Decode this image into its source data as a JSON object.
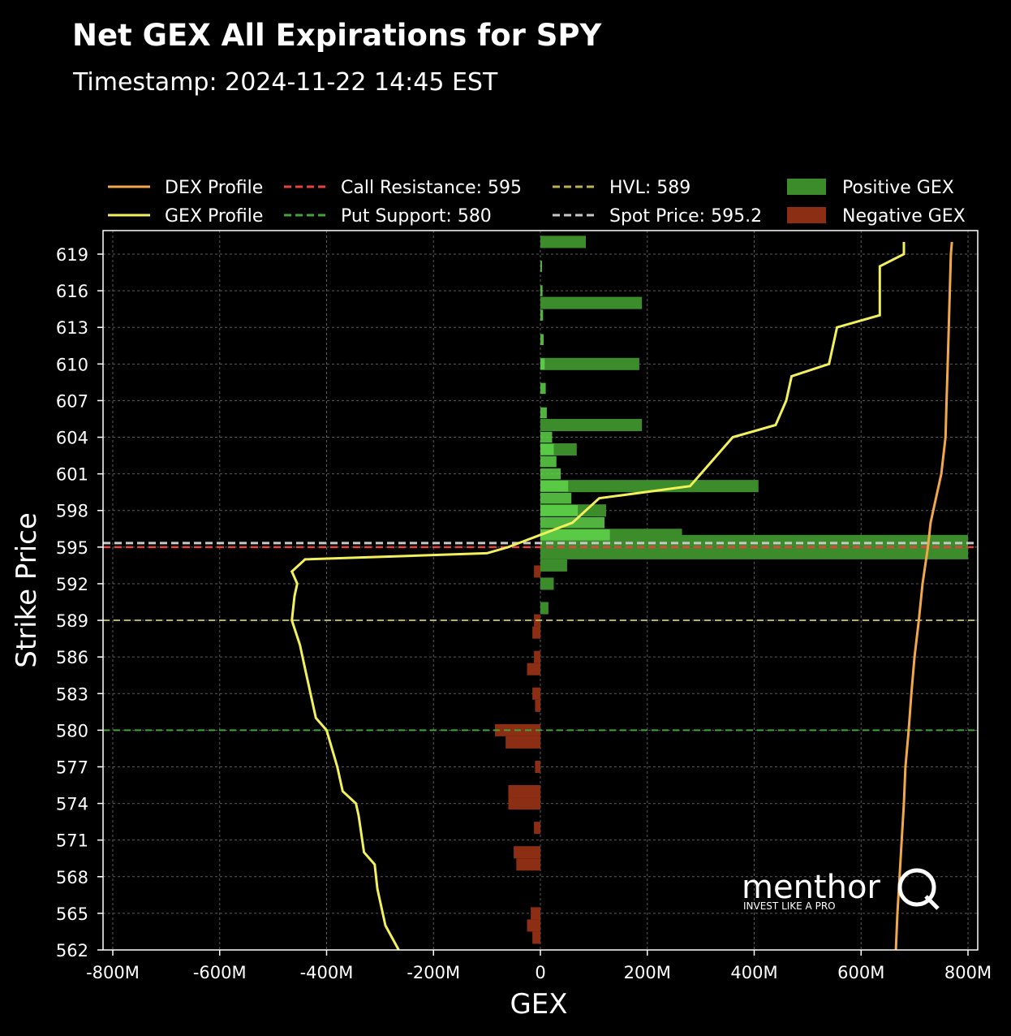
{
  "chart_data": {
    "type": "bar",
    "orientation": "horizontal",
    "title": "Net GEX All Expirations for SPY",
    "subtitle": "Timestamp: 2024-11-22 14:45 EST",
    "xlabel": "GEX",
    "ylabel": "Strike Price",
    "xlim": [
      -800,
      800
    ],
    "x_unit": "M",
    "ylim": [
      562,
      621
    ],
    "x_ticks": [
      -800,
      -600,
      -400,
      -200,
      0,
      200,
      400,
      600,
      800
    ],
    "x_tick_labels": [
      "-800M",
      "-600M",
      "-400M",
      "-200M",
      "0",
      "200M",
      "400M",
      "600M",
      "800M"
    ],
    "y_ticks": [
      562,
      565,
      568,
      571,
      574,
      577,
      580,
      583,
      586,
      589,
      592,
      595,
      598,
      601,
      604,
      607,
      610,
      613,
      616,
      619
    ],
    "grid": true,
    "legend_position": "top",
    "colors": {
      "background": "#000000",
      "positive": "#3d8c2b",
      "positive_light": "#5fd34a",
      "negative": "#8b2e14",
      "gex_profile": "#f3f15b",
      "dex_profile": "#f2a84a",
      "call_resistance": "#e8423f",
      "put_support": "#3fa53a",
      "hvl": "#b9b152",
      "spot": "#c8c8c8",
      "grid": "#5a5a5a"
    },
    "legend": [
      {
        "label": "DEX Profile",
        "kind": "line",
        "color": "#f2a84a"
      },
      {
        "label": "GEX Profile",
        "kind": "line",
        "color": "#f3f15b"
      },
      {
        "label": "Call Resistance: 595",
        "kind": "dash",
        "color": "#e8423f"
      },
      {
        "label": "Put Support: 580",
        "kind": "dash",
        "color": "#3fa53a"
      },
      {
        "label": "HVL: 589",
        "kind": "dash",
        "color": "#b9b152"
      },
      {
        "label": "Spot Price: 595.2",
        "kind": "dash",
        "color": "#c8c8c8"
      },
      {
        "label": "Positive GEX",
        "kind": "patch",
        "color": "#3d8c2b"
      },
      {
        "label": "Negative GEX",
        "kind": "patch",
        "color": "#8b2e14"
      }
    ],
    "levels": {
      "call_resistance": 595,
      "put_support": 580,
      "hvl": 589,
      "spot": 595.2
    },
    "all_expirations_bars": [
      {
        "strike": 620,
        "value": 85
      },
      {
        "strike": 615,
        "value": 190
      },
      {
        "strike": 610,
        "value": 185
      },
      {
        "strike": 605,
        "value": 190
      },
      {
        "strike": 603,
        "value": 68
      },
      {
        "strike": 600,
        "value": 408
      },
      {
        "strike": 598,
        "value": 123
      },
      {
        "strike": 596,
        "value": 265
      },
      {
        "strike": 595.5,
        "value": 800
      },
      {
        "strike": 594.5,
        "value": 800
      },
      {
        "strike": 593.5,
        "value": 50
      },
      {
        "strike": 593,
        "value": -12
      },
      {
        "strike": 592,
        "value": 25
      },
      {
        "strike": 590,
        "value": 15
      },
      {
        "strike": 589,
        "value": -12
      },
      {
        "strike": 588,
        "value": -15
      },
      {
        "strike": 586,
        "value": -12
      },
      {
        "strike": 585,
        "value": -25
      },
      {
        "strike": 583,
        "value": -15
      },
      {
        "strike": 582,
        "value": -10
      },
      {
        "strike": 580,
        "value": -85
      },
      {
        "strike": 579,
        "value": -65
      },
      {
        "strike": 577,
        "value": -10
      },
      {
        "strike": 575,
        "value": -60
      },
      {
        "strike": 574,
        "value": -60
      },
      {
        "strike": 572,
        "value": -12
      },
      {
        "strike": 570,
        "value": -50
      },
      {
        "strike": 569,
        "value": -45
      },
      {
        "strike": 565,
        "value": -18
      },
      {
        "strike": 564,
        "value": -25
      },
      {
        "strike": 563,
        "value": -15
      }
    ],
    "near_term_bars": [
      {
        "strike": 618,
        "value": 3
      },
      {
        "strike": 616,
        "value": 4
      },
      {
        "strike": 614,
        "value": 5
      },
      {
        "strike": 612,
        "value": 6
      },
      {
        "strike": 610,
        "value": 8
      },
      {
        "strike": 608,
        "value": 10
      },
      {
        "strike": 606,
        "value": 12
      },
      {
        "strike": 604,
        "value": 22
      },
      {
        "strike": 603,
        "value": 25
      },
      {
        "strike": 602,
        "value": 30
      },
      {
        "strike": 601,
        "value": 38
      },
      {
        "strike": 600,
        "value": 52
      },
      {
        "strike": 599,
        "value": 58
      },
      {
        "strike": 598,
        "value": 70
      },
      {
        "strike": 597,
        "value": 120
      },
      {
        "strike": 596,
        "value": 130
      }
    ],
    "gex_profile": [
      [
        -265,
        562
      ],
      [
        -290,
        564
      ],
      [
        -305,
        567
      ],
      [
        -310,
        569
      ],
      [
        -330,
        570
      ],
      [
        -340,
        573
      ],
      [
        -345,
        574
      ],
      [
        -370,
        575
      ],
      [
        -380,
        577
      ],
      [
        -400,
        580
      ],
      [
        -420,
        581
      ],
      [
        -430,
        583
      ],
      [
        -440,
        585
      ],
      [
        -450,
        587
      ],
      [
        -465,
        589
      ],
      [
        -460,
        591
      ],
      [
        -455,
        592
      ],
      [
        -465,
        593
      ],
      [
        -440,
        594
      ],
      [
        -100,
        594.5
      ],
      [
        -60,
        595
      ],
      [
        0,
        596
      ],
      [
        60,
        597
      ],
      [
        110,
        599
      ],
      [
        280,
        600
      ],
      [
        320,
        602
      ],
      [
        360,
        604
      ],
      [
        440,
        605
      ],
      [
        460,
        607
      ],
      [
        470,
        609
      ],
      [
        540,
        610
      ],
      [
        555,
        613
      ],
      [
        635,
        614
      ],
      [
        635,
        618
      ],
      [
        680,
        619
      ],
      [
        680,
        620
      ]
    ],
    "dex_profile": [
      [
        665,
        562
      ],
      [
        668,
        565
      ],
      [
        672,
        568
      ],
      [
        676,
        571
      ],
      [
        680,
        574
      ],
      [
        683,
        577
      ],
      [
        689,
        580
      ],
      [
        694,
        583
      ],
      [
        700,
        586
      ],
      [
        708,
        589
      ],
      [
        715,
        592
      ],
      [
        725,
        595
      ],
      [
        730,
        597
      ],
      [
        740,
        599
      ],
      [
        750,
        601
      ],
      [
        758,
        604
      ],
      [
        760,
        607
      ],
      [
        762,
        610
      ],
      [
        764,
        613
      ],
      [
        766,
        616
      ],
      [
        768,
        619
      ],
      [
        770,
        620
      ]
    ]
  },
  "watermark": {
    "brand": "menthor",
    "brand_letter": "Q",
    "tagline": "INVEST LIKE A PRO"
  }
}
